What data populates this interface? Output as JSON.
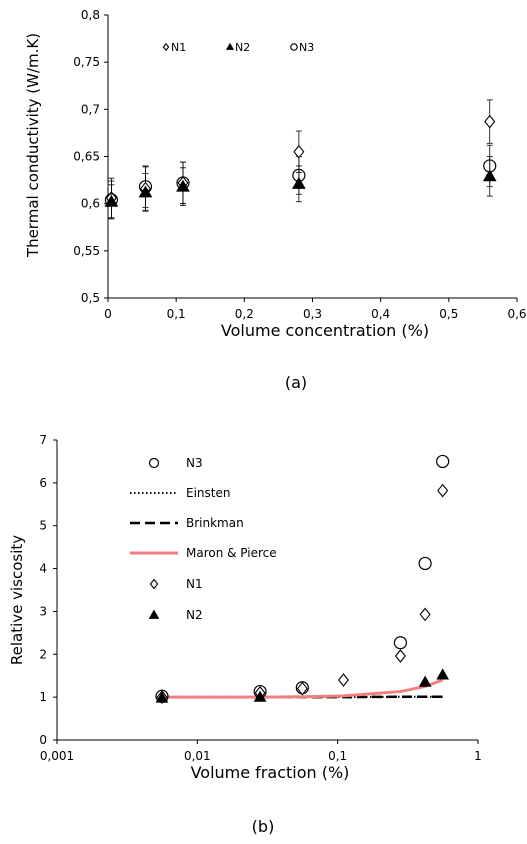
{
  "chart_data": [
    {
      "type": "scatter",
      "caption": "(a)",
      "xlabel": "Volume concentration (%)",
      "ylabel": "Thermal conductivity (W/m.K)",
      "xlim": [
        0,
        0.6
      ],
      "ylim": [
        0.5,
        0.8
      ],
      "x_ticks": [
        "0",
        "0,1",
        "0,2",
        "0,3",
        "0,4",
        "0,5",
        "0,6"
      ],
      "y_ticks": [
        "0,5",
        "0,55",
        "0,6",
        "0,65",
        "0,7",
        "0,75",
        "0,8"
      ],
      "grid": false,
      "legend": "top",
      "series": [
        {
          "name": "N1",
          "marker": "diamond-open",
          "x": [
            0.005,
            0.055,
            0.11,
            0.28,
            0.56
          ],
          "y": [
            0.606,
            0.616,
            0.622,
            0.655,
            0.687
          ],
          "err": [
            0.021,
            0.023,
            0.022,
            0.022,
            0.023
          ]
        },
        {
          "name": "N2",
          "marker": "triangle-filled",
          "x": [
            0.005,
            0.055,
            0.11,
            0.28,
            0.56
          ],
          "y": [
            0.602,
            0.612,
            0.618,
            0.621,
            0.629
          ],
          "err": [
            0.018,
            0.02,
            0.02,
            0.019,
            0.021
          ]
        },
        {
          "name": "N3",
          "marker": "circle-open",
          "x": [
            0.005,
            0.055,
            0.11,
            0.28,
            0.56
          ],
          "y": [
            0.604,
            0.618,
            0.622,
            0.63,
            0.64
          ],
          "err": [
            0.02,
            0.022,
            0.022,
            0.02,
            0.022
          ]
        }
      ]
    },
    {
      "type": "scatter",
      "caption": "(b)",
      "xlabel": "Volume fraction (%)",
      "ylabel": "Relative viscosity",
      "xscale": "log",
      "xlim": [
        0.001,
        1
      ],
      "ylim": [
        0,
        7
      ],
      "x_ticks": [
        "0,001",
        "0,01",
        "0,1",
        "1"
      ],
      "y_ticks": [
        "0",
        "1",
        "2",
        "3",
        "4",
        "5",
        "6",
        "7"
      ],
      "grid": false,
      "legend": "top-left",
      "series": [
        {
          "name": "N3",
          "marker": "circle-open",
          "x": [
            0.0056,
            0.028,
            0.056,
            0.28,
            0.42,
            0.56
          ],
          "y": [
            1.02,
            1.13,
            1.22,
            2.27,
            4.12,
            6.5
          ]
        },
        {
          "name": "Einsten",
          "line": "dotted",
          "x": [
            0.0056,
            0.028,
            0.056,
            0.11,
            0.28,
            0.42,
            0.56
          ],
          "y": [
            1.0,
            1.0,
            1.0,
            1.0,
            1.01,
            1.01,
            1.01
          ]
        },
        {
          "name": "Brinkman",
          "line": "dashed",
          "x": [
            0.0056,
            0.028,
            0.056,
            0.11,
            0.28,
            0.42,
            0.56
          ],
          "y": [
            1.0,
            1.0,
            1.0,
            1.0,
            1.01,
            1.01,
            1.01
          ]
        },
        {
          "name": "Maron & Pierce",
          "line": "solid",
          "x": [
            0.0056,
            0.028,
            0.056,
            0.11,
            0.28,
            0.42,
            0.56
          ],
          "y": [
            1.0,
            1.0,
            1.01,
            1.03,
            1.13,
            1.25,
            1.4
          ]
        },
        {
          "name": "N1",
          "marker": "diamond-open",
          "x": [
            0.0056,
            0.028,
            0.056,
            0.11,
            0.28,
            0.42,
            0.56
          ],
          "y": [
            1.0,
            1.1,
            1.2,
            1.4,
            1.96,
            2.93,
            5.82
          ]
        },
        {
          "name": "N2",
          "marker": "triangle-filled",
          "x": [
            0.0056,
            0.028,
            0.42,
            0.56
          ],
          "y": [
            0.98,
            1.0,
            1.35,
            1.52
          ]
        }
      ]
    }
  ],
  "colors": {
    "axis": "#000000",
    "maron_pierce": "#f08080"
  }
}
